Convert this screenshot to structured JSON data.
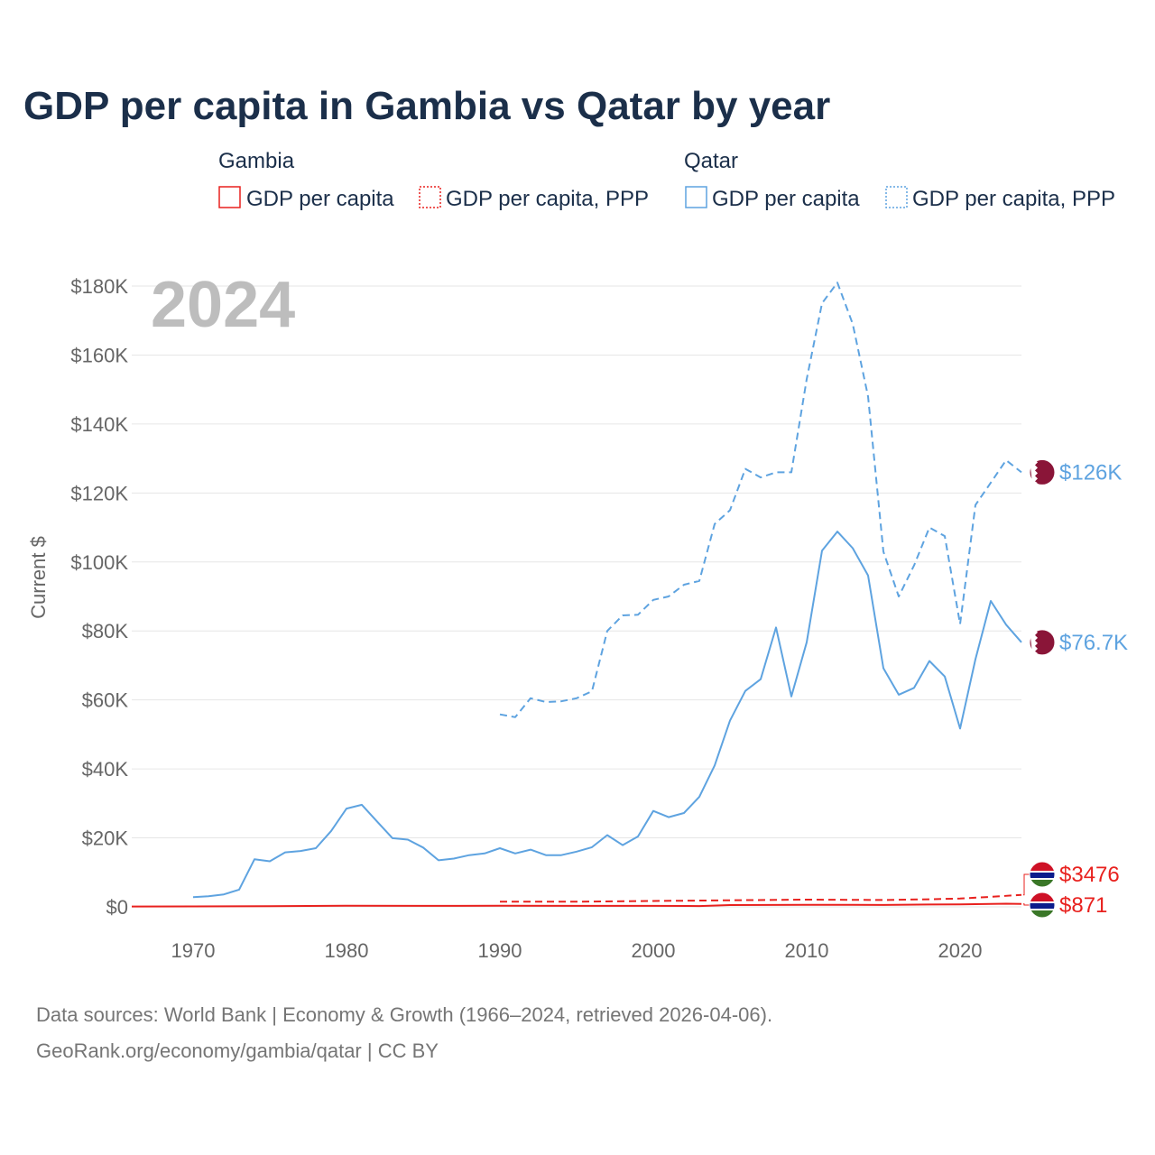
{
  "title": "GDP per capita in Gambia vs Qatar by year",
  "year_label": "2024",
  "legend": {
    "groups": [
      {
        "name": "Gambia",
        "color": "#e8211e",
        "items": [
          {
            "label": "GDP per capita",
            "style": "solid"
          },
          {
            "label": "GDP per capita, PPP",
            "style": "dotted"
          }
        ]
      },
      {
        "name": "Qatar",
        "color": "#5ea3e0",
        "items": [
          {
            "label": "GDP per capita",
            "style": "solid"
          },
          {
            "label": "GDP per capita, PPP",
            "style": "dotted"
          }
        ]
      }
    ]
  },
  "source": {
    "line1": "Data sources: World Bank | Economy & Growth (1966–2024, retrieved 2026-04-06).",
    "line2": "GeoRank.org/economy/gambia/qatar | CC BY"
  },
  "chart_data": {
    "type": "line",
    "title": "GDP per capita in Gambia vs Qatar by year",
    "xlabel": "",
    "ylabel": "Current $",
    "xlim": [
      1966,
      2024
    ],
    "ylim": [
      0,
      180000
    ],
    "x_ticks": [
      1970,
      1980,
      1990,
      2000,
      2010,
      2020
    ],
    "x_tick_labels": [
      "1970",
      "1980",
      "1990",
      "2000",
      "2010",
      "2020"
    ],
    "y_ticks": [
      0,
      20000,
      40000,
      60000,
      80000,
      100000,
      120000,
      140000,
      160000,
      180000
    ],
    "y_tick_labels": [
      "$0",
      "$20K",
      "$40K",
      "$60K",
      "$80K",
      "$100K",
      "$120K",
      "$140K",
      "$160K",
      "$180K"
    ],
    "grid": true,
    "series": [
      {
        "name": "Qatar GDP per capita",
        "country": "Qatar",
        "color": "#5ea3e0",
        "dash": "solid",
        "end_label": "$76.7K",
        "points": [
          [
            1970,
            2800
          ],
          [
            1971,
            3100
          ],
          [
            1972,
            3600
          ],
          [
            1973,
            5000
          ],
          [
            1974,
            13800
          ],
          [
            1975,
            13200
          ],
          [
            1976,
            15800
          ],
          [
            1977,
            16200
          ],
          [
            1978,
            17000
          ],
          [
            1979,
            22000
          ],
          [
            1980,
            28500
          ],
          [
            1981,
            29600
          ],
          [
            1982,
            24700
          ],
          [
            1983,
            19900
          ],
          [
            1984,
            19500
          ],
          [
            1985,
            17200
          ],
          [
            1986,
            13500
          ],
          [
            1987,
            14000
          ],
          [
            1988,
            15000
          ],
          [
            1989,
            15500
          ],
          [
            1990,
            17000
          ],
          [
            1991,
            15500
          ],
          [
            1992,
            16600
          ],
          [
            1993,
            15000
          ],
          [
            1994,
            15000
          ],
          [
            1995,
            16000
          ],
          [
            1996,
            17300
          ],
          [
            1997,
            20800
          ],
          [
            1998,
            17900
          ],
          [
            1999,
            20400
          ],
          [
            2000,
            27800
          ],
          [
            2001,
            26000
          ],
          [
            2002,
            27200
          ],
          [
            2003,
            31900
          ],
          [
            2004,
            41000
          ],
          [
            2005,
            54000
          ],
          [
            2006,
            62600
          ],
          [
            2007,
            66000
          ],
          [
            2008,
            81000
          ],
          [
            2009,
            61000
          ],
          [
            2010,
            76700
          ],
          [
            2011,
            103300
          ],
          [
            2012,
            108800
          ],
          [
            2013,
            104000
          ],
          [
            2014,
            96100
          ],
          [
            2015,
            69200
          ],
          [
            2016,
            61500
          ],
          [
            2017,
            63500
          ],
          [
            2018,
            71300
          ],
          [
            2019,
            66800
          ],
          [
            2020,
            51700
          ],
          [
            2021,
            71800
          ],
          [
            2022,
            88700
          ],
          [
            2023,
            81800
          ],
          [
            2024,
            76700
          ]
        ]
      },
      {
        "name": "Qatar GDP per capita, PPP",
        "country": "Qatar",
        "color": "#5ea3e0",
        "dash": "dashed",
        "end_label": "$126K",
        "points": [
          [
            1990,
            55800
          ],
          [
            1991,
            55000
          ],
          [
            1992,
            60500
          ],
          [
            1993,
            59400
          ],
          [
            1994,
            59600
          ],
          [
            1995,
            60500
          ],
          [
            1996,
            62500
          ],
          [
            1997,
            80000
          ],
          [
            1998,
            84500
          ],
          [
            1999,
            84700
          ],
          [
            2000,
            89000
          ],
          [
            2001,
            90000
          ],
          [
            2002,
            93400
          ],
          [
            2003,
            94500
          ],
          [
            2004,
            111000
          ],
          [
            2005,
            115000
          ],
          [
            2006,
            127000
          ],
          [
            2007,
            124500
          ],
          [
            2008,
            126000
          ],
          [
            2009,
            126000
          ],
          [
            2010,
            153000
          ],
          [
            2011,
            175000
          ],
          [
            2012,
            181000
          ],
          [
            2013,
            169000
          ],
          [
            2014,
            148000
          ],
          [
            2015,
            103000
          ],
          [
            2016,
            90000
          ],
          [
            2017,
            99000
          ],
          [
            2018,
            110000
          ],
          [
            2019,
            107500
          ],
          [
            2020,
            82000
          ],
          [
            2021,
            116500
          ],
          [
            2022,
            123000
          ],
          [
            2023,
            129500
          ],
          [
            2024,
            126000
          ]
        ]
      },
      {
        "name": "Gambia GDP per capita",
        "country": "Gambia",
        "color": "#e8211e",
        "dash": "solid",
        "end_label": "$871",
        "points": [
          [
            1966,
            110
          ],
          [
            1970,
            130
          ],
          [
            1975,
            200
          ],
          [
            1980,
            330
          ],
          [
            1985,
            280
          ],
          [
            1990,
            320
          ],
          [
            1995,
            300
          ],
          [
            2000,
            300
          ],
          [
            2003,
            230
          ],
          [
            2005,
            520
          ],
          [
            2010,
            600
          ],
          [
            2013,
            600
          ],
          [
            2015,
            560
          ],
          [
            2018,
            690
          ],
          [
            2020,
            700
          ],
          [
            2023,
            920
          ],
          [
            2024,
            871
          ]
        ]
      },
      {
        "name": "Gambia GDP per capita, PPP",
        "country": "Gambia",
        "color": "#e8211e",
        "dash": "dashed",
        "end_label": "$3476",
        "points": [
          [
            1990,
            1480
          ],
          [
            1995,
            1500
          ],
          [
            2000,
            1700
          ],
          [
            2005,
            1900
          ],
          [
            2010,
            2100
          ],
          [
            2015,
            2000
          ],
          [
            2018,
            2200
          ],
          [
            2020,
            2400
          ],
          [
            2022,
            2900
          ],
          [
            2024,
            3476
          ]
        ]
      }
    ]
  }
}
